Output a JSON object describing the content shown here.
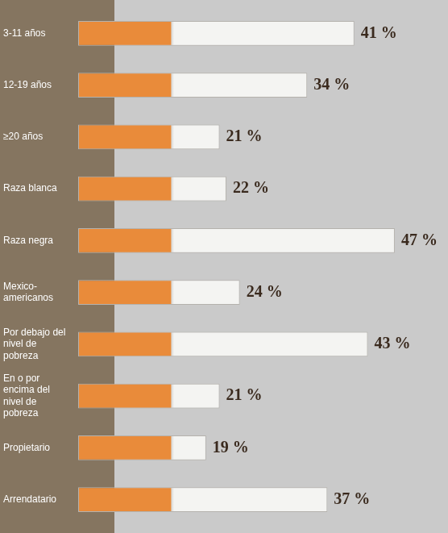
{
  "chart_data": {
    "type": "bar",
    "orientation": "horizontal",
    "categories": [
      "3-11 años",
      "12-19 años",
      "≥20 años",
      "Raza blanca",
      "Raza negra",
      "Mexico-americanos",
      "Por debajo del nivel de pobreza",
      "En o por encima del nivel de pobreza",
      "Propietario",
      "Arrendatario"
    ],
    "values": [
      41,
      34,
      21,
      22,
      47,
      24,
      43,
      21,
      19,
      37
    ],
    "value_labels": [
      "41 %",
      "34 %",
      "21 %",
      "22 %",
      "47 %",
      "24 %",
      "43 %",
      "21 %",
      "19 %",
      "37 %"
    ],
    "color": "#e98b3a",
    "xlim": [
      0,
      50
    ],
    "grid": false,
    "data_labels": true,
    "tick_labels": "y"
  }
}
